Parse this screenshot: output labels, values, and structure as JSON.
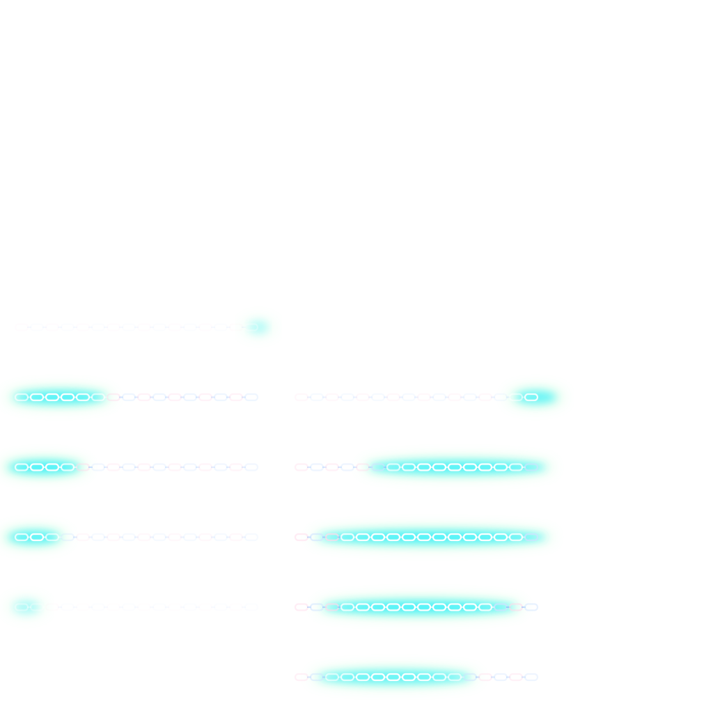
{
  "sprite_sheet": {
    "subject": "chain-beam-effect-frames",
    "colors": {
      "chain": "#ffffff",
      "chain_outline": "#cfe3ff",
      "chain_outline_strong": "#7fb3ff",
      "glow_cyan": "#33f0ff",
      "glow_green": "#7dffb0",
      "tint_pink": "#ffd9ea"
    },
    "columns": [
      {
        "name": "left-column",
        "frames": [
          {
            "glow_center": 0.97,
            "glow_spread": 0.03,
            "glow_strength": 0.35,
            "chain_opacity": 0.12
          },
          {
            "glow_center": 0.18,
            "glow_spread": 0.18,
            "glow_strength": 0.95,
            "chain_opacity": 0.55
          },
          {
            "glow_center": 0.12,
            "glow_spread": 0.14,
            "glow_strength": 1.0,
            "chain_opacity": 0.45
          },
          {
            "glow_center": 0.08,
            "glow_spread": 0.1,
            "glow_strength": 0.9,
            "chain_opacity": 0.3
          },
          {
            "glow_center": 0.05,
            "glow_spread": 0.05,
            "glow_strength": 0.4,
            "chain_opacity": 0.1
          }
        ]
      },
      {
        "name": "right-column",
        "frames": [
          {
            "glow_center": 0.96,
            "glow_spread": 0.08,
            "glow_strength": 0.8,
            "chain_opacity": 0.3
          },
          {
            "glow_center": 0.65,
            "glow_spread": 0.35,
            "glow_strength": 0.95,
            "chain_opacity": 0.6
          },
          {
            "glow_center": 0.55,
            "glow_spread": 0.45,
            "glow_strength": 1.0,
            "chain_opacity": 0.85
          },
          {
            "glow_center": 0.5,
            "glow_spread": 0.38,
            "glow_strength": 1.0,
            "chain_opacity": 0.8
          },
          {
            "glow_center": 0.4,
            "glow_spread": 0.3,
            "glow_strength": 0.85,
            "chain_opacity": 0.6
          }
        ]
      }
    ]
  }
}
